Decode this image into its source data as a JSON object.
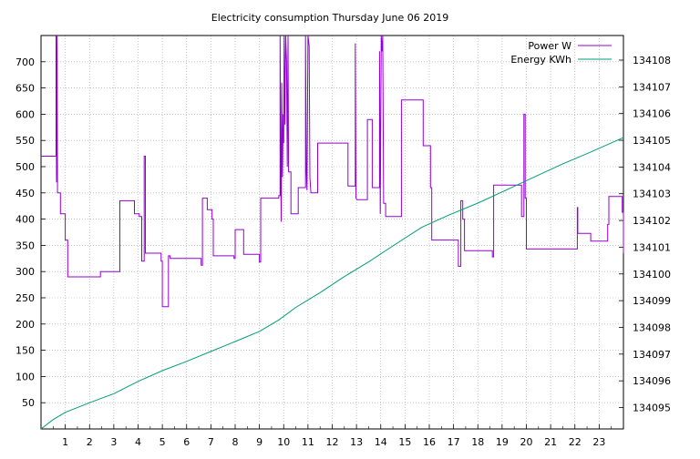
{
  "chart_data": {
    "type": "line",
    "title": "Electricity consumption Thursday June 06 2019",
    "x_ticks": [
      "1",
      "2",
      "3",
      "4",
      "5",
      "6",
      "7",
      "8",
      "9",
      "10",
      "11",
      "12",
      "13",
      "14",
      "15",
      "16",
      "17",
      "18",
      "19",
      "20",
      "21",
      "22",
      "23"
    ],
    "xlim": [
      0,
      24
    ],
    "y_left": {
      "ticks": [
        50,
        100,
        150,
        200,
        250,
        300,
        350,
        400,
        450,
        500,
        550,
        600,
        650,
        700
      ],
      "range": [
        0,
        750
      ]
    },
    "y_right": {
      "ticks": [
        134095,
        134096,
        134097,
        134098,
        134099,
        134100,
        134101,
        134102,
        134103,
        134104,
        134105,
        134106,
        134107,
        134108
      ],
      "range": [
        134094.2,
        134108.92
      ]
    },
    "grid": true,
    "legend_position": "top-right",
    "series": [
      {
        "name": "Power W",
        "color": "#9400d3",
        "axis": "left",
        "points": [
          [
            0,
            520
          ],
          [
            0.62,
            520
          ],
          [
            0.62,
            750
          ],
          [
            0.64,
            470
          ],
          [
            0.66,
            750
          ],
          [
            0.68,
            450
          ],
          [
            0.8,
            450
          ],
          [
            0.8,
            410
          ],
          [
            1.0,
            410
          ],
          [
            1.0,
            360
          ],
          [
            1.1,
            360
          ],
          [
            1.1,
            290
          ],
          [
            2.45,
            290
          ],
          [
            2.45,
            300
          ],
          [
            3.25,
            300
          ],
          [
            3.25,
            435
          ],
          [
            3.85,
            435
          ],
          [
            3.85,
            410
          ],
          [
            4.05,
            410
          ],
          [
            4.05,
            405
          ],
          [
            4.15,
            405
          ],
          [
            4.15,
            320
          ],
          [
            4.25,
            320
          ],
          [
            4.25,
            520
          ],
          [
            4.3,
            520
          ],
          [
            4.3,
            335
          ],
          [
            4.95,
            335
          ],
          [
            4.95,
            320
          ],
          [
            5.0,
            320
          ],
          [
            5.0,
            233
          ],
          [
            5.25,
            233
          ],
          [
            5.25,
            330
          ],
          [
            5.32,
            330
          ],
          [
            5.32,
            325
          ],
          [
            6.6,
            325
          ],
          [
            6.6,
            312
          ],
          [
            6.65,
            312
          ],
          [
            6.65,
            440
          ],
          [
            6.85,
            440
          ],
          [
            6.85,
            418
          ],
          [
            7.05,
            418
          ],
          [
            7.05,
            400
          ],
          [
            7.1,
            400
          ],
          [
            7.1,
            330
          ],
          [
            7.95,
            330
          ],
          [
            7.95,
            325
          ],
          [
            8.0,
            325
          ],
          [
            8.0,
            380
          ],
          [
            8.35,
            380
          ],
          [
            8.35,
            333
          ],
          [
            9.0,
            333
          ],
          [
            9.0,
            318
          ],
          [
            9.05,
            318
          ],
          [
            9.05,
            440
          ],
          [
            9.8,
            440
          ],
          [
            9.8,
            445
          ],
          [
            9.85,
            445
          ],
          [
            9.85,
            750
          ],
          [
            9.88,
            470
          ],
          [
            9.9,
            395
          ],
          [
            9.92,
            660
          ],
          [
            9.95,
            480
          ],
          [
            9.98,
            600
          ],
          [
            10.0,
            545
          ],
          [
            10.02,
            750
          ],
          [
            10.05,
            580
          ],
          [
            10.08,
            750
          ],
          [
            10.12,
            700
          ],
          [
            10.15,
            500
          ],
          [
            10.18,
            750
          ],
          [
            10.2,
            490
          ],
          [
            10.3,
            490
          ],
          [
            10.3,
            410
          ],
          [
            10.6,
            410
          ],
          [
            10.6,
            460
          ],
          [
            10.9,
            460
          ],
          [
            10.9,
            750
          ],
          [
            10.93,
            500
          ],
          [
            10.96,
            455
          ],
          [
            11.0,
            750
          ],
          [
            11.05,
            730
          ],
          [
            11.08,
            480
          ],
          [
            11.12,
            450
          ],
          [
            11.4,
            450
          ],
          [
            11.4,
            545
          ],
          [
            12.65,
            545
          ],
          [
            12.65,
            463
          ],
          [
            12.95,
            463
          ],
          [
            12.95,
            735
          ],
          [
            12.98,
            440
          ],
          [
            13.02,
            437
          ],
          [
            13.45,
            437
          ],
          [
            13.45,
            590
          ],
          [
            13.65,
            590
          ],
          [
            13.65,
            460
          ],
          [
            13.95,
            460
          ],
          [
            13.95,
            720
          ],
          [
            13.98,
            410
          ],
          [
            14.02,
            750
          ],
          [
            14.05,
            720
          ],
          [
            14.08,
            750
          ],
          [
            14.12,
            430
          ],
          [
            14.2,
            430
          ],
          [
            14.2,
            405
          ],
          [
            14.85,
            405
          ],
          [
            14.85,
            627
          ],
          [
            15.75,
            627
          ],
          [
            15.75,
            540
          ],
          [
            16.05,
            540
          ],
          [
            16.05,
            460
          ],
          [
            16.1,
            460
          ],
          [
            16.1,
            360
          ],
          [
            17.2,
            360
          ],
          [
            17.2,
            310
          ],
          [
            17.3,
            310
          ],
          [
            17.3,
            435
          ],
          [
            17.38,
            435
          ],
          [
            17.38,
            400
          ],
          [
            17.45,
            400
          ],
          [
            17.45,
            340
          ],
          [
            18.6,
            340
          ],
          [
            18.6,
            328
          ],
          [
            18.65,
            328
          ],
          [
            18.65,
            465
          ],
          [
            19.8,
            465
          ],
          [
            19.8,
            405
          ],
          [
            19.9,
            405
          ],
          [
            19.9,
            600
          ],
          [
            19.95,
            600
          ],
          [
            19.95,
            440
          ],
          [
            20.0,
            440
          ],
          [
            20.0,
            343
          ],
          [
            22.1,
            343
          ],
          [
            22.1,
            422
          ],
          [
            22.12,
            422
          ],
          [
            22.12,
            373
          ],
          [
            22.65,
            373
          ],
          [
            22.65,
            358
          ],
          [
            23.35,
            358
          ],
          [
            23.35,
            390
          ],
          [
            23.4,
            390
          ],
          [
            23.4,
            443
          ],
          [
            23.95,
            443
          ],
          [
            23.95,
            413
          ],
          [
            24.0,
            413
          ],
          [
            24.0,
            335
          ]
        ]
      },
      {
        "name": "Energy KWh",
        "color": "#009e73",
        "axis": "right",
        "points": [
          [
            0,
            134094.2
          ],
          [
            0.5,
            134094.55
          ],
          [
            1.0,
            134094.82
          ],
          [
            2.0,
            134095.18
          ],
          [
            3.0,
            134095.52
          ],
          [
            4.0,
            134095.98
          ],
          [
            5.0,
            134096.38
          ],
          [
            6.0,
            134096.73
          ],
          [
            7.0,
            134097.1
          ],
          [
            8.0,
            134097.47
          ],
          [
            9.0,
            134097.85
          ],
          [
            9.8,
            134098.28
          ],
          [
            10.5,
            134098.75
          ],
          [
            11.5,
            134099.3
          ],
          [
            12.5,
            134099.9
          ],
          [
            13.5,
            134100.45
          ],
          [
            14.5,
            134101.05
          ],
          [
            15.7,
            134101.75
          ],
          [
            16.8,
            134102.2
          ],
          [
            18.0,
            134102.65
          ],
          [
            19.2,
            134103.15
          ],
          [
            20.5,
            134103.7
          ],
          [
            21.5,
            134104.12
          ],
          [
            22.5,
            134104.5
          ],
          [
            24.0,
            134105.1
          ]
        ]
      }
    ]
  }
}
